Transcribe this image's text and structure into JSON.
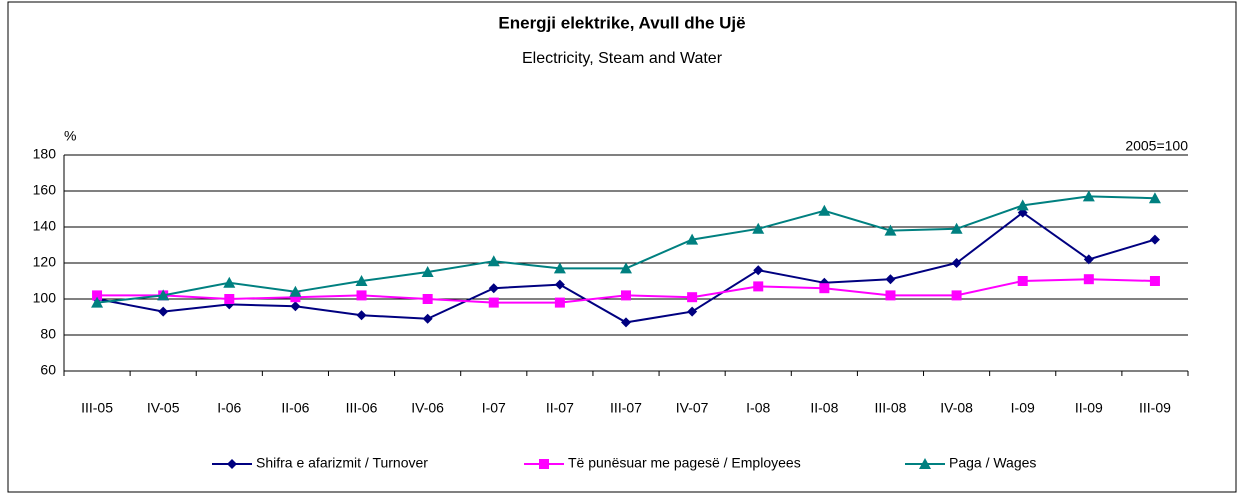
{
  "chart_data": {
    "type": "line",
    "title": "Energji elektrike, Avull dhe Ujë",
    "subtitle": "Electricity, Steam and Water",
    "y_label": "%",
    "annotation": "2005=100",
    "categories": [
      "III-05",
      "IV-05",
      "I-06",
      "II-06",
      "III-06",
      "IV-06",
      "I-07",
      "II-07",
      "III-07",
      "IV-07",
      "I-08",
      "II-08",
      "III-08",
      "IV-08",
      "I-09",
      "II-09",
      "III-09"
    ],
    "series": [
      {
        "name": "Shifra e afarizmit / Turnover",
        "color": "#000080",
        "marker": "diamond",
        "values": [
          100,
          93,
          97,
          96,
          91,
          89,
          106,
          108,
          87,
          93,
          116,
          109,
          111,
          120,
          148,
          122,
          133
        ]
      },
      {
        "name": "Të punësuar me pagesë / Employees",
        "color": "#ff00ff",
        "marker": "square",
        "values": [
          102,
          102,
          100,
          101,
          102,
          100,
          98,
          98,
          102,
          101,
          107,
          106,
          102,
          102,
          110,
          111,
          110
        ]
      },
      {
        "name": "Paga / Wages",
        "color": "#008080",
        "marker": "triangle",
        "values": [
          98,
          102,
          109,
          104,
          110,
          115,
          121,
          117,
          117,
          133,
          139,
          149,
          138,
          139,
          152,
          157,
          156
        ]
      }
    ],
    "ylim": [
      60,
      180
    ],
    "yticks": [
      60,
      80,
      100,
      120,
      140,
      160,
      180
    ],
    "grid": true,
    "legend": "bottom"
  }
}
